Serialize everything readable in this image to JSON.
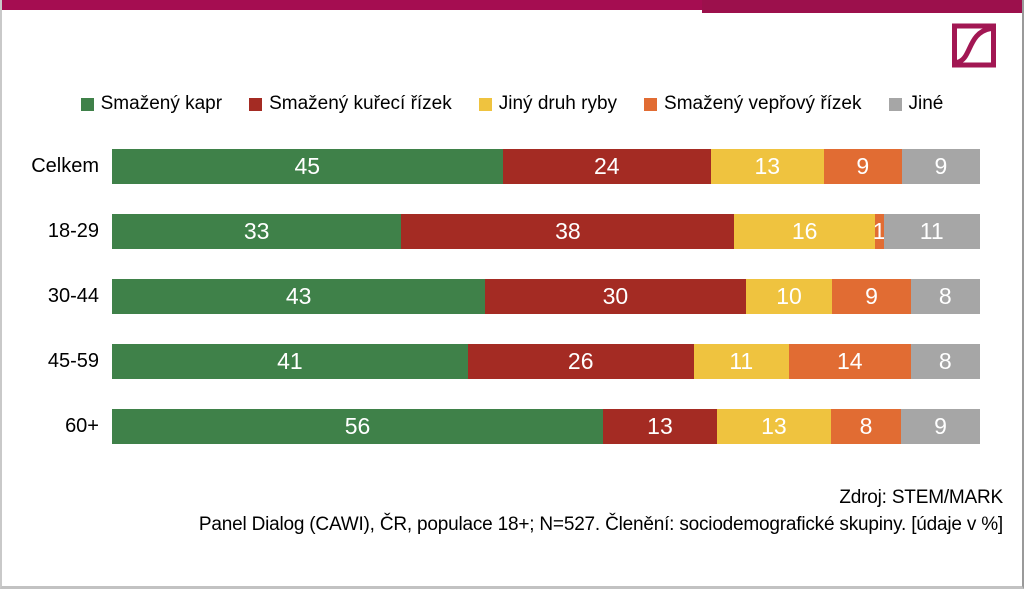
{
  "header": {
    "band_color": "#A50D51",
    "band_right_color": "#9C104C",
    "logo_name": "stem-mark-logo",
    "logo_color": "#A21753"
  },
  "chart_data": {
    "type": "bar",
    "orientation": "horizontal",
    "stacked": true,
    "value_unit": "%",
    "xlim": [
      0,
      100
    ],
    "grid": false,
    "legend_position": "top-center",
    "categories": [
      "Celkem",
      "18-29",
      "30-44",
      "45-59",
      "60+"
    ],
    "series": [
      {
        "name": "Smažený kapr",
        "color": "#3F8149",
        "values": [
          45,
          33,
          43,
          41,
          56
        ]
      },
      {
        "name": "Smažený kuřecí řízek",
        "color": "#A42B23",
        "values": [
          24,
          38,
          30,
          26,
          13
        ]
      },
      {
        "name": "Jiný druh ryby",
        "color": "#EFC33F",
        "values": [
          13,
          16,
          10,
          11,
          13
        ]
      },
      {
        "name": "Smažený vepřový řízek",
        "color": "#E16C33",
        "values": [
          9,
          1,
          9,
          14,
          8
        ]
      },
      {
        "name": "Jiné",
        "color": "#A6A6A6",
        "values": [
          9,
          11,
          8,
          8,
          9
        ]
      }
    ],
    "value_label_color": "#FFFFFF"
  },
  "footer": {
    "source": "Zdroj: STEM/MARK",
    "note": "Panel Dialog (CAWI), ČR, populace 18+; N=527. Členění: sociodemografické skupiny. [údaje v %]"
  }
}
